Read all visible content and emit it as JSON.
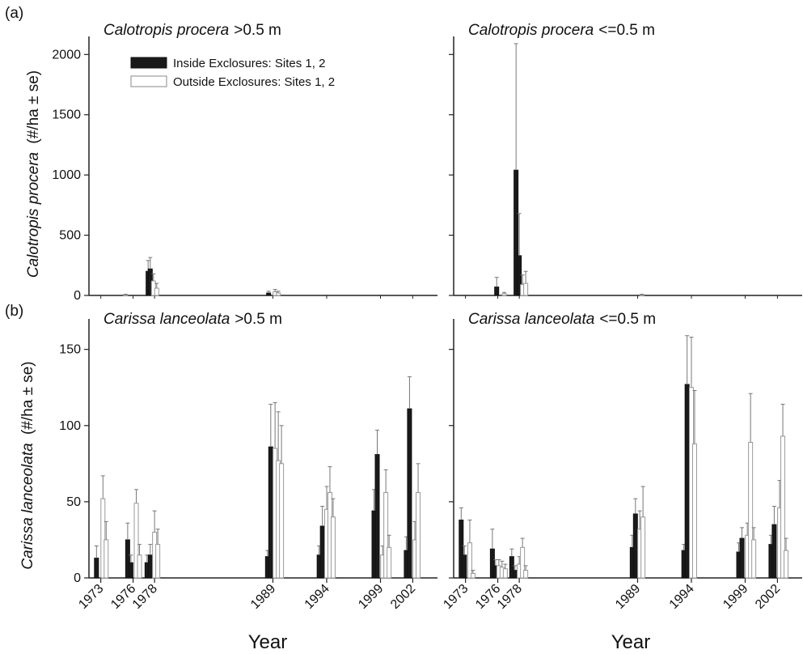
{
  "figure": {
    "panel_a_label": "(a)",
    "panel_b_label": "(b)",
    "y_label_a_species": "Calotropis procera",
    "y_label_a_unit": "(#/ha ± se)",
    "y_label_b_species": "Carissa lanceolata",
    "y_label_b_unit": "(#/ha ± se)",
    "x_label": "Year",
    "legend": [
      {
        "label": "Inside Exclosures: Sites 1, 2",
        "fill": "#1a1a1a"
      },
      {
        "label": "Outside Exclosures: Sites 1, 2",
        "fill": "#ffffff"
      }
    ],
    "colors": {
      "inside": "#1a1a1a",
      "outside": "#ffffff",
      "axis": "#222222"
    }
  },
  "chart_data": [
    {
      "type": "bar",
      "panel": "a-left",
      "title_species": "Calotropis procera",
      "title_suffix": ">0.5 m",
      "ylim": [
        0,
        2150
      ],
      "yticks": [
        0,
        500,
        1000,
        1500,
        2000
      ],
      "xticks": [],
      "series": [
        {
          "name": "Inside Exclosures: Sites 1, 2",
          "points": [
            {
              "year": 1977.4,
              "value": 200,
              "se": 90
            },
            {
              "year": 1977.6,
              "value": 220,
              "se": 95
            },
            {
              "year": 1988.6,
              "value": 20,
              "se": 15
            }
          ]
        },
        {
          "name": "Outside Exclosures: Sites 1, 2",
          "points": [
            {
              "year": 1975.3,
              "value": 5,
              "se": 5
            },
            {
              "year": 1977.9,
              "value": 120,
              "se": 60
            },
            {
              "year": 1978.2,
              "value": 60,
              "se": 40
            },
            {
              "year": 1989.2,
              "value": 30,
              "se": 20
            },
            {
              "year": 1989.5,
              "value": 20,
              "se": 15
            }
          ]
        }
      ]
    },
    {
      "type": "bar",
      "panel": "a-right",
      "title_species": "Calotropis procera",
      "title_suffix": "<=0.5 m",
      "ylim": [
        0,
        2150
      ],
      "yticks": [
        0,
        500,
        1000,
        1500,
        2000
      ],
      "xticks": [],
      "series": [
        {
          "name": "Inside Exclosures: Sites 1, 2",
          "points": [
            {
              "year": 1975.9,
              "value": 70,
              "se": 80
            },
            {
              "year": 1977.7,
              "value": 1040,
              "se": 1050
            },
            {
              "year": 1978.0,
              "value": 330,
              "se": 350
            }
          ]
        },
        {
          "name": "Outside Exclosures: Sites 1, 2",
          "points": [
            {
              "year": 1976.6,
              "value": 15,
              "se": 10
            },
            {
              "year": 1978.3,
              "value": 90,
              "se": 80
            },
            {
              "year": 1978.6,
              "value": 100,
              "se": 100
            },
            {
              "year": 1989.4,
              "value": 5,
              "se": 5
            }
          ]
        }
      ]
    },
    {
      "type": "bar",
      "panel": "b-left",
      "title_species": "Carissa lanceolata",
      "title_suffix": ">0.5 m",
      "ylim": [
        0,
        170
      ],
      "yticks": [
        0,
        50,
        100,
        150
      ],
      "xticks": [
        "1973",
        "1976",
        "1978",
        "1989",
        "1994",
        "1999",
        "2002"
      ],
      "series": [
        {
          "name": "Inside Exclosures: Sites 1, 2",
          "points": [
            {
              "year": 1972.6,
              "value": 13,
              "se": 8
            },
            {
              "year": 1975.5,
              "value": 25,
              "se": 11
            },
            {
              "year": 1975.8,
              "value": 10,
              "se": 5
            },
            {
              "year": 1977.3,
              "value": 10,
              "se": 5
            },
            {
              "year": 1977.6,
              "value": 15,
              "se": 7
            },
            {
              "year": 1988.5,
              "value": 14,
              "se": 4
            },
            {
              "year": 1988.8,
              "value": 86,
              "se": 28
            },
            {
              "year": 1993.3,
              "value": 15,
              "se": 6
            },
            {
              "year": 1993.6,
              "value": 34,
              "se": 13
            },
            {
              "year": 1998.4,
              "value": 44,
              "se": 14
            },
            {
              "year": 1998.7,
              "value": 81,
              "se": 16
            },
            {
              "year": 2001.4,
              "value": 18,
              "se": 9
            },
            {
              "year": 2001.7,
              "value": 111,
              "se": 21
            }
          ]
        },
        {
          "name": "Outside Exclosures: Sites 1, 2",
          "points": [
            {
              "year": 1973.2,
              "value": 52,
              "se": 15
            },
            {
              "year": 1973.5,
              "value": 25,
              "se": 12
            },
            {
              "year": 1976.3,
              "value": 49,
              "se": 9
            },
            {
              "year": 1976.6,
              "value": 15,
              "se": 7
            },
            {
              "year": 1978.0,
              "value": 30,
              "se": 14
            },
            {
              "year": 1978.3,
              "value": 22,
              "se": 10
            },
            {
              "year": 1989.2,
              "value": 85,
              "se": 30
            },
            {
              "year": 1989.5,
              "value": 77,
              "se": 32
            },
            {
              "year": 1989.8,
              "value": 75,
              "se": 25
            },
            {
              "year": 1994.0,
              "value": 45,
              "se": 15
            },
            {
              "year": 1994.3,
              "value": 56,
              "se": 17
            },
            {
              "year": 1994.6,
              "value": 40,
              "se": 12
            },
            {
              "year": 1999.2,
              "value": 15,
              "se": 6
            },
            {
              "year": 1999.5,
              "value": 56,
              "se": 15
            },
            {
              "year": 1999.8,
              "value": 20,
              "se": 8
            },
            {
              "year": 2002.2,
              "value": 25,
              "se": 12
            },
            {
              "year": 2002.5,
              "value": 56,
              "se": 19
            }
          ]
        }
      ]
    },
    {
      "type": "bar",
      "panel": "b-right",
      "title_species": "Carissa lanceolata",
      "title_suffix": "<=0.5 m",
      "ylim": [
        0,
        170
      ],
      "yticks": [
        0,
        50,
        100,
        150
      ],
      "xticks": [
        "1973",
        "1976",
        "1978",
        "1989",
        "1994",
        "1999",
        "2002"
      ],
      "series": [
        {
          "name": "Inside Exclosures: Sites 1, 2",
          "points": [
            {
              "year": 1972.6,
              "value": 38,
              "se": 8
            },
            {
              "year": 1972.9,
              "value": 15,
              "se": 6
            },
            {
              "year": 1975.5,
              "value": 19,
              "se": 13
            },
            {
              "year": 1975.8,
              "value": 8,
              "se": 4
            },
            {
              "year": 1977.3,
              "value": 14,
              "se": 5
            },
            {
              "year": 1977.6,
              "value": 5,
              "se": 3
            },
            {
              "year": 1988.5,
              "value": 20,
              "se": 8
            },
            {
              "year": 1988.8,
              "value": 42,
              "se": 10
            },
            {
              "year": 1993.3,
              "value": 18,
              "se": 4
            },
            {
              "year": 1993.6,
              "value": 127,
              "se": 32
            },
            {
              "year": 1998.4,
              "value": 17,
              "se": 6
            },
            {
              "year": 1998.7,
              "value": 26,
              "se": 7
            },
            {
              "year": 2001.4,
              "value": 22,
              "se": 6
            },
            {
              "year": 2001.7,
              "value": 35,
              "se": 12
            }
          ]
        },
        {
          "name": "Outside Exclosures: Sites 1, 2",
          "points": [
            {
              "year": 1973.4,
              "value": 23,
              "se": 15
            },
            {
              "year": 1973.7,
              "value": 3,
              "se": 2
            },
            {
              "year": 1976.1,
              "value": 8,
              "se": 4
            },
            {
              "year": 1976.4,
              "value": 7,
              "se": 4
            },
            {
              "year": 1976.7,
              "value": 6,
              "se": 3
            },
            {
              "year": 1978.0,
              "value": 9,
              "se": 5
            },
            {
              "year": 1978.3,
              "value": 20,
              "se": 6
            },
            {
              "year": 1978.6,
              "value": 5,
              "se": 3
            },
            {
              "year": 1989.2,
              "value": 32,
              "se": 12
            },
            {
              "year": 1989.5,
              "value": 40,
              "se": 20
            },
            {
              "year": 1994.0,
              "value": 125,
              "se": 33
            },
            {
              "year": 1994.3,
              "value": 88,
              "se": 35
            },
            {
              "year": 1999.2,
              "value": 28,
              "se": 8
            },
            {
              "year": 1999.5,
              "value": 89,
              "se": 32
            },
            {
              "year": 1999.8,
              "value": 25,
              "se": 8
            },
            {
              "year": 2002.2,
              "value": 46,
              "se": 18
            },
            {
              "year": 2002.5,
              "value": 93,
              "se": 21
            },
            {
              "year": 2002.8,
              "value": 18,
              "se": 8
            }
          ]
        }
      ]
    }
  ]
}
